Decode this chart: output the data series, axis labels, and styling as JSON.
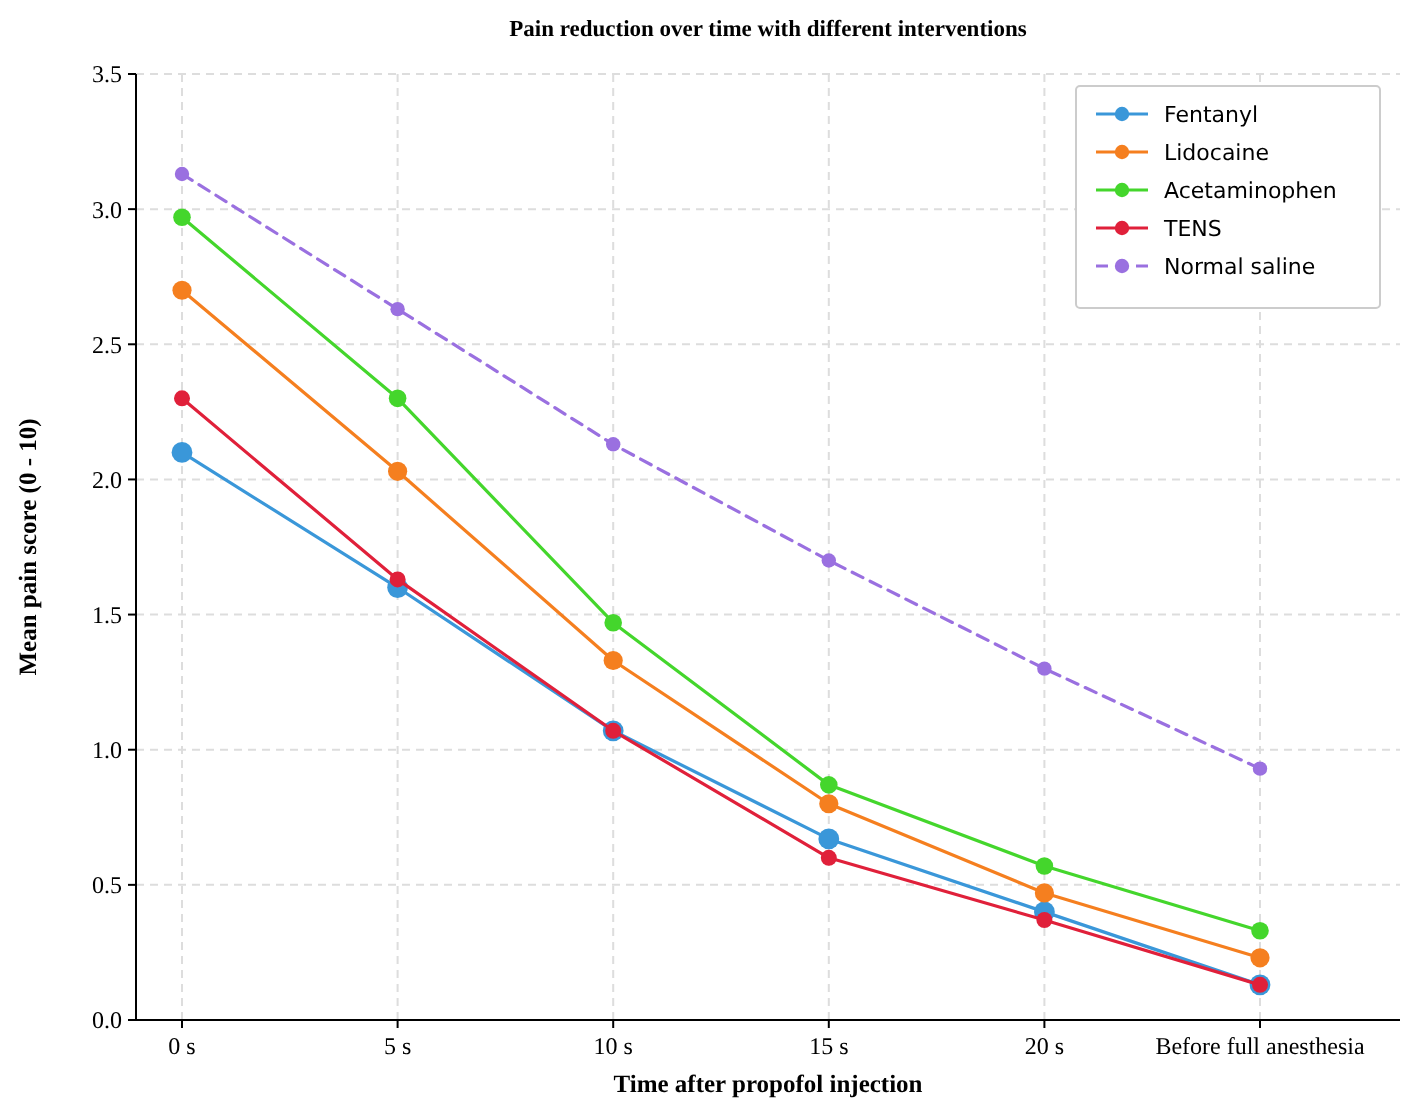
{
  "chart_data": {
    "type": "line",
    "title": "Pain reduction over time with different interventions",
    "xlabel": "Time after propofol injection",
    "ylabel": "Mean pain score (0 - 10)",
    "categories": [
      "0 s",
      "5 s",
      "10 s",
      "15 s",
      "20 s",
      "Before full anesthesia"
    ],
    "ylim": [
      0,
      3.5
    ],
    "yticks": [
      {
        "value": 0,
        "label": "0.0"
      },
      {
        "value": 0.5,
        "label": "0.5"
      },
      {
        "value": 1,
        "label": "1.0"
      },
      {
        "value": 1.5,
        "label": "1.5"
      },
      {
        "value": 2,
        "label": "2.0"
      },
      {
        "value": 2.5,
        "label": "2.5"
      },
      {
        "value": 3,
        "label": "3.0"
      },
      {
        "value": 3.5,
        "label": "3.5"
      }
    ],
    "grid": true,
    "legend": "top right",
    "marker": "circle",
    "series": [
      {
        "name": "Fentanyl",
        "color": "#3a97d9",
        "values": [
          2.1,
          1.6,
          1.07,
          0.67,
          0.4,
          0.13
        ]
      },
      {
        "name": "Lidocaine",
        "color": "#f57f1f",
        "values": [
          2.7,
          2.03,
          1.33,
          0.8,
          0.47,
          0.23
        ]
      },
      {
        "name": "Acetaminophen",
        "color": "#44d62c",
        "values": [
          2.97,
          2.3,
          1.47,
          0.87,
          0.57,
          0.33
        ]
      },
      {
        "name": "TENS",
        "color": "#e0203a",
        "values": [
          2.3,
          1.63,
          1.07,
          0.6,
          0.37,
          0.13
        ]
      },
      {
        "name": "Normal saline",
        "color": "#9a70e0",
        "line_style": "dashed",
        "values": [
          3.13,
          2.63,
          2.13,
          1.7,
          1.3,
          0.93
        ]
      }
    ]
  }
}
